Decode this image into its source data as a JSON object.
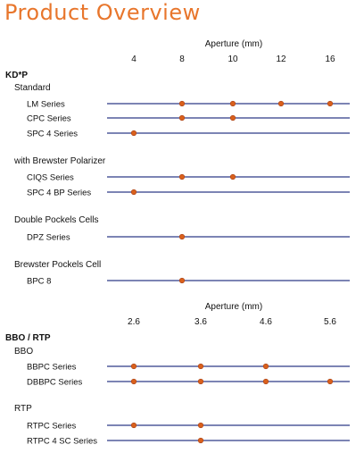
{
  "title": "Product Overview",
  "colors": {
    "title": "#e8762c",
    "line": "#2e3a87",
    "dot": "#d9601c",
    "dot_stroke": "#a8431a"
  },
  "chart_data": [
    {
      "type": "scatter",
      "axis_label": "Aperture (mm)",
      "ticks": [
        4,
        8,
        10,
        12,
        16
      ],
      "group": "KD*P",
      "sections": [
        {
          "title": "Standard",
          "rows": [
            {
              "label": "LM Series",
              "values": [
                8,
                10,
                12,
                16
              ]
            },
            {
              "label": "CPC Series",
              "values": [
                8,
                10
              ]
            },
            {
              "label": "SPC 4 Series",
              "values": [
                4
              ]
            }
          ]
        },
        {
          "title": "with Brewster Polarizer",
          "rows": [
            {
              "label": "CIQS Series",
              "values": [
                8,
                10
              ]
            },
            {
              "label": "SPC 4 BP Series",
              "values": [
                4
              ]
            }
          ]
        },
        {
          "title": "Double Pockels Cells",
          "rows": [
            {
              "label": "DPZ Series",
              "values": [
                8
              ]
            }
          ]
        },
        {
          "title": "Brewster Pockels Cell",
          "rows": [
            {
              "label": "BPC 8",
              "values": [
                8
              ]
            }
          ]
        }
      ]
    },
    {
      "type": "scatter",
      "axis_label": "Aperture (mm)",
      "ticks": [
        2.6,
        3.6,
        4.6,
        5.6
      ],
      "group": "BBO / RTP",
      "sections": [
        {
          "title": "BBO",
          "rows": [
            {
              "label": "BBPC Series",
              "values": [
                2.6,
                3.6,
                4.6
              ]
            },
            {
              "label": "DBBPC Series",
              "values": [
                2.6,
                3.6,
                4.6,
                5.6
              ]
            }
          ]
        },
        {
          "title": "RTP",
          "rows": [
            {
              "label": "RTPC Series",
              "values": [
                2.6,
                3.6
              ]
            },
            {
              "label": "RTPC 4 SC Series",
              "values": [
                3.6
              ]
            }
          ]
        }
      ]
    }
  ]
}
